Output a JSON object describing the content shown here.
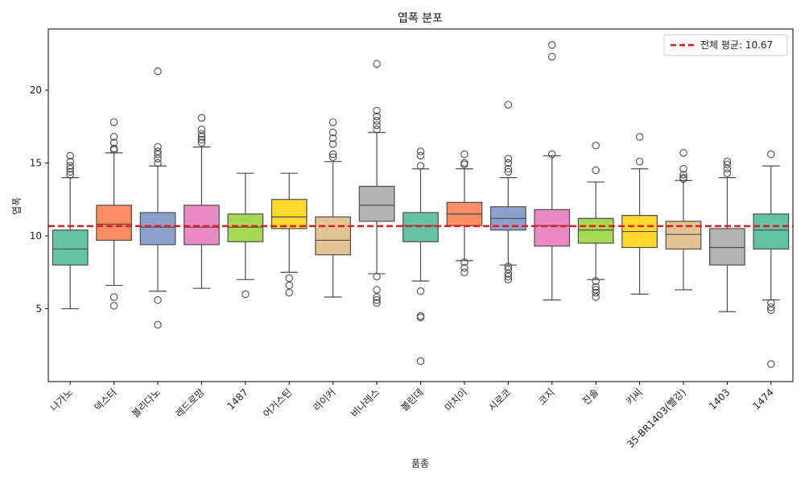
{
  "chart_data": {
    "type": "box",
    "title": "엽폭 분포",
    "xlabel": "품종",
    "ylabel": "엽폭",
    "ylim": [
      0,
      24.2
    ],
    "yticks": [
      5,
      10,
      15,
      20
    ],
    "grid": false,
    "legend_position": "top-right",
    "mean_line": {
      "label": "전체 평균: 10.67",
      "value": 10.67,
      "color": "#e31a1c"
    },
    "categories": [
      "나가노",
      "덱스터",
      "볼리다노",
      "레드로망",
      "1487",
      "어거스틴",
      "라이커",
      "비나레스",
      "볼린데",
      "마치이",
      "시로코",
      "코지",
      "진솔",
      "키씨",
      "35-BR1403(빨강)",
      "1403",
      "1474"
    ],
    "boxes": [
      {
        "color": "#66c2a5",
        "whisker_low": 5.0,
        "q1": 8.0,
        "median": 9.1,
        "q3": 10.4,
        "whisker_high": 14.0,
        "outliers": [
          14.2,
          14.4,
          14.6,
          14.8,
          15.1,
          15.5
        ]
      },
      {
        "color": "#fc8d62",
        "whisker_low": 6.6,
        "q1": 9.7,
        "median": 10.8,
        "q3": 12.1,
        "whisker_high": 15.7,
        "outliers": [
          5.2,
          5.8,
          15.9,
          16.0,
          16.4,
          16.8,
          17.8
        ]
      },
      {
        "color": "#8da0cb",
        "whisker_low": 6.2,
        "q1": 9.4,
        "median": 10.6,
        "q3": 11.6,
        "whisker_high": 14.8,
        "outliers": [
          3.9,
          5.6,
          15.0,
          15.3,
          15.6,
          15.8,
          16.1,
          21.3
        ]
      },
      {
        "color": "#e78ac3",
        "whisker_low": 6.4,
        "q1": 9.4,
        "median": 10.6,
        "q3": 12.1,
        "whisker_high": 16.1,
        "outliers": [
          16.4,
          16.6,
          16.8,
          17.0,
          17.3,
          18.1
        ]
      },
      {
        "color": "#a6d854",
        "whisker_low": 7.0,
        "q1": 9.6,
        "median": 10.6,
        "q3": 11.5,
        "whisker_high": 14.3,
        "outliers": [
          6.0
        ]
      },
      {
        "color": "#ffd92f",
        "whisker_low": 7.5,
        "q1": 10.5,
        "median": 11.3,
        "q3": 12.5,
        "whisker_high": 14.3,
        "outliers": [
          6.1,
          6.6,
          7.1
        ]
      },
      {
        "color": "#e5c494",
        "whisker_low": 5.8,
        "q1": 8.7,
        "median": 9.7,
        "q3": 11.3,
        "whisker_high": 15.1,
        "outliers": [
          15.4,
          15.6,
          16.3,
          16.7,
          17.1,
          17.8
        ]
      },
      {
        "color": "#b3b3b3",
        "whisker_low": 7.4,
        "q1": 11.0,
        "median": 12.1,
        "q3": 13.4,
        "whisker_high": 17.1,
        "outliers": [
          5.4,
          5.6,
          5.8,
          6.3,
          7.2,
          17.3,
          17.6,
          17.9,
          18.2,
          18.6,
          21.8
        ]
      },
      {
        "color": "#66c2a5",
        "whisker_low": 6.9,
        "q1": 9.6,
        "median": 10.7,
        "q3": 11.6,
        "whisker_high": 14.6,
        "outliers": [
          1.4,
          4.4,
          4.5,
          6.2,
          14.8,
          15.5,
          15.8
        ]
      },
      {
        "color": "#fc8d62",
        "whisker_low": 8.3,
        "q1": 10.7,
        "median": 11.5,
        "q3": 12.3,
        "whisker_high": 14.6,
        "outliers": [
          7.5,
          7.8,
          8.2,
          14.9,
          15.0,
          15.6
        ]
      },
      {
        "color": "#8da0cb",
        "whisker_low": 8.0,
        "q1": 10.4,
        "median": 11.2,
        "q3": 12.0,
        "whisker_high": 14.0,
        "outliers": [
          7.0,
          7.2,
          7.4,
          7.7,
          7.9,
          14.4,
          14.6,
          15.0,
          15.3,
          19.0
        ]
      },
      {
        "color": "#e78ac3",
        "whisker_low": 5.6,
        "q1": 9.3,
        "median": 10.7,
        "q3": 11.8,
        "whisker_high": 15.5,
        "outliers": [
          15.6,
          22.3,
          23.1
        ]
      },
      {
        "color": "#a6d854",
        "whisker_low": 7.0,
        "q1": 9.5,
        "median": 10.4,
        "q3": 11.2,
        "whisker_high": 13.7,
        "outliers": [
          5.8,
          6.1,
          6.3,
          6.5,
          6.9,
          14.5,
          16.2
        ]
      },
      {
        "color": "#ffd92f",
        "whisker_low": 6.0,
        "q1": 9.2,
        "median": 10.3,
        "q3": 11.4,
        "whisker_high": 14.6,
        "outliers": [
          15.1,
          16.8
        ]
      },
      {
        "color": "#e5c494",
        "whisker_low": 6.3,
        "q1": 9.1,
        "median": 10.1,
        "q3": 11.0,
        "whisker_high": 13.8,
        "outliers": [
          13.9,
          14.0,
          14.2,
          14.6,
          15.7
        ]
      },
      {
        "color": "#b3b3b3",
        "whisker_low": 4.8,
        "q1": 8.0,
        "median": 9.2,
        "q3": 10.5,
        "whisker_high": 14.0,
        "outliers": [
          14.3,
          14.6,
          14.9,
          15.1
        ]
      },
      {
        "color": "#66c2a5",
        "whisker_low": 5.6,
        "q1": 9.1,
        "median": 10.4,
        "q3": 11.5,
        "whisker_high": 14.8,
        "outliers": [
          1.2,
          4.9,
          5.1,
          5.4,
          15.6
        ]
      }
    ]
  }
}
